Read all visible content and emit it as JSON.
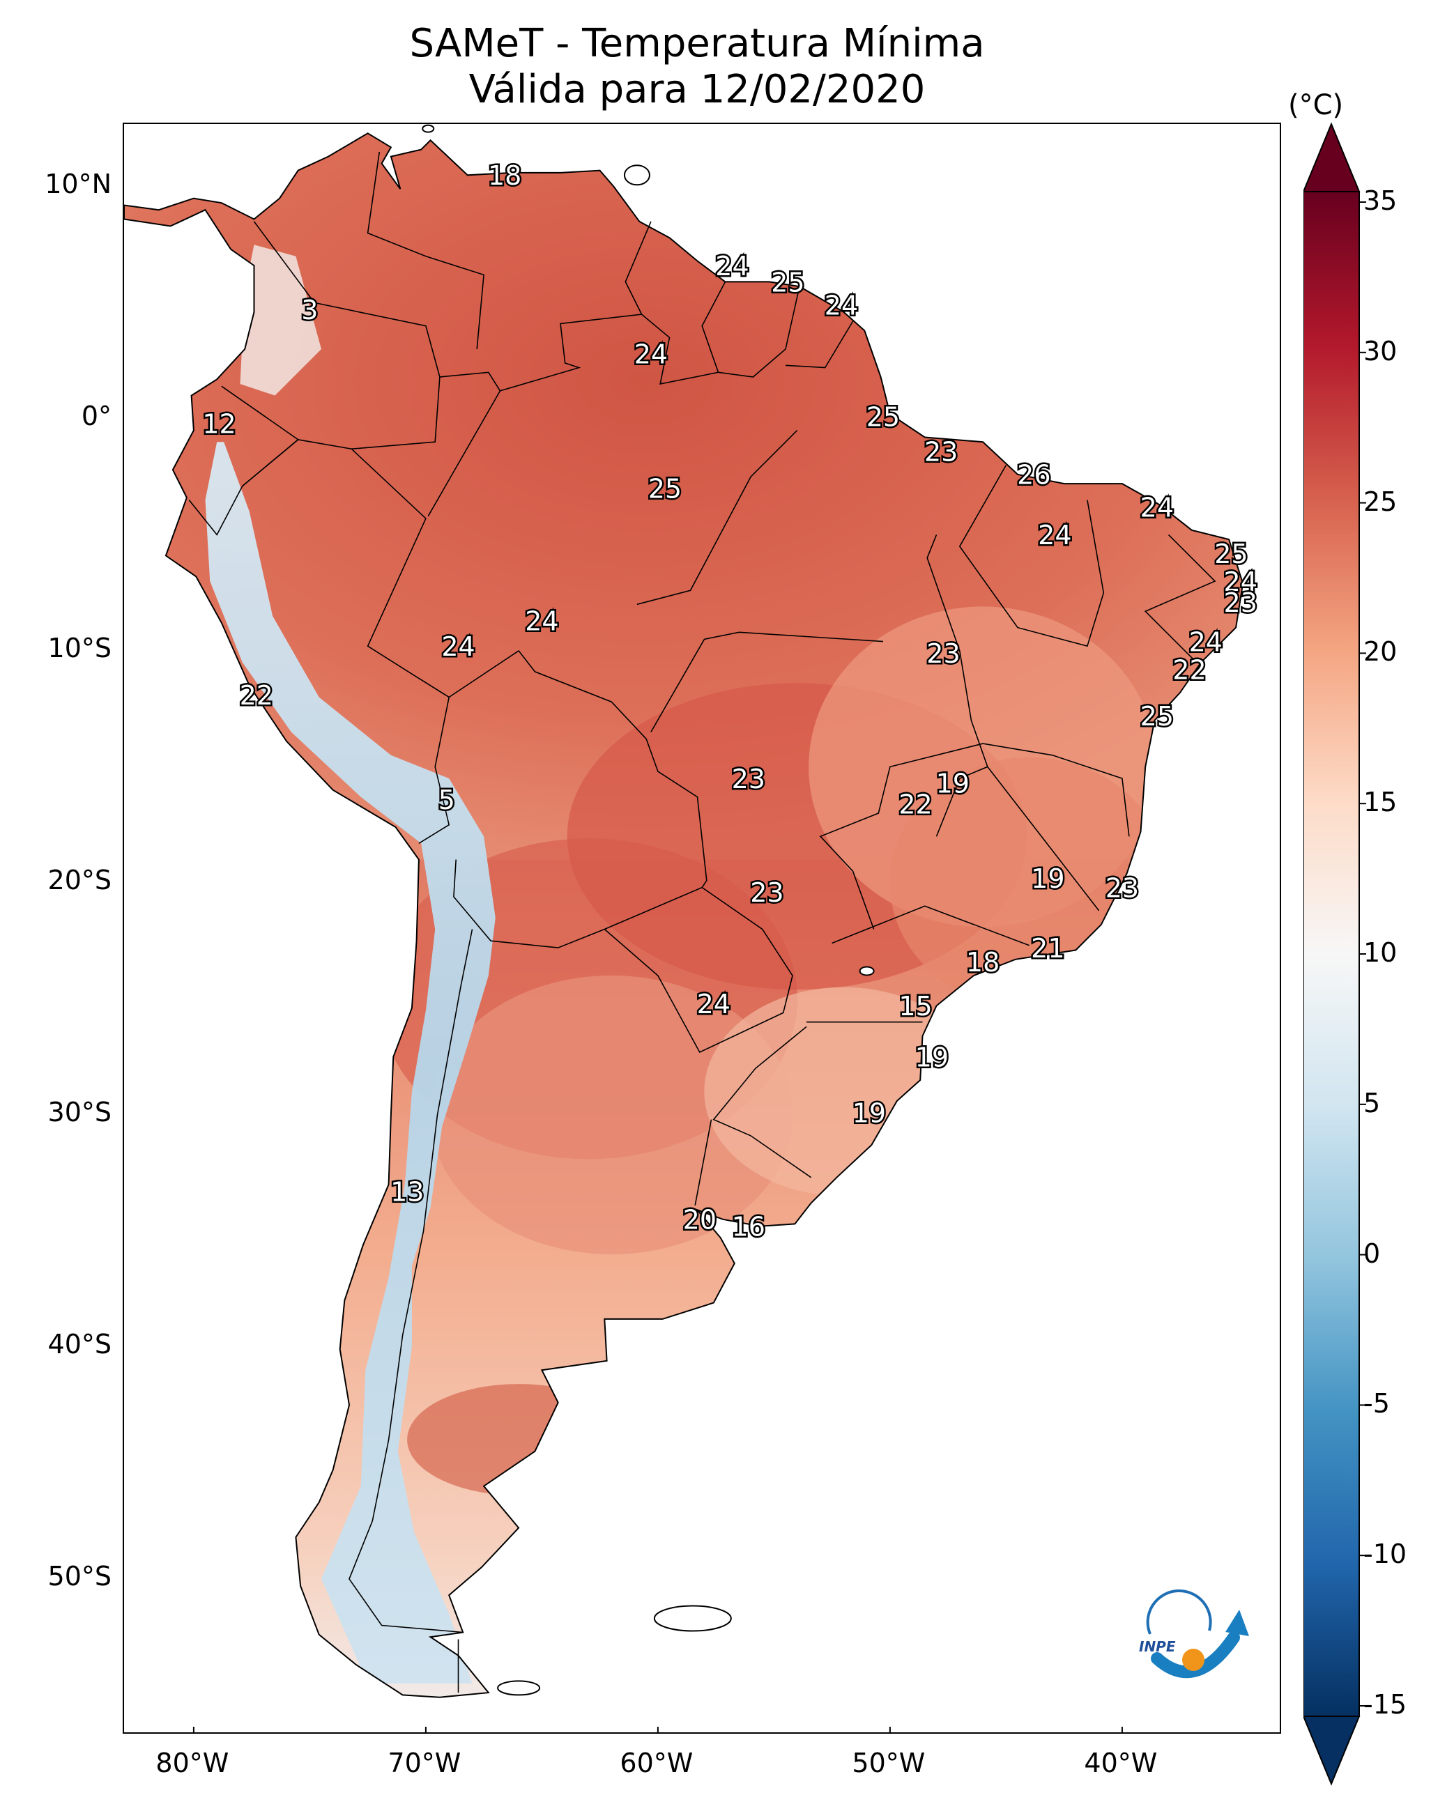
{
  "title": {
    "line1": "SAMeT - Temperatura Mínima",
    "line2": "Válida para 12/02/2020"
  },
  "colorbar": {
    "unit": "(°C)",
    "ticks": [
      "35",
      "30",
      "25",
      "20",
      "15",
      "10",
      "5",
      "0",
      "-5",
      "-10",
      "-15"
    ],
    "min": -15,
    "max": 35,
    "colors_top_to_bottom": [
      "#67001f",
      "#b2182b",
      "#d6604d",
      "#f4a582",
      "#fddbc7",
      "#f7f7f7",
      "#d1e5f0",
      "#92c5de",
      "#4393c3",
      "#2166ac",
      "#053061"
    ]
  },
  "axes": {
    "lat_labels": [
      "10°N",
      "0°",
      "10°S",
      "20°S",
      "30°S",
      "40°S",
      "50°S"
    ],
    "lon_labels": [
      "80°W",
      "70°W",
      "60°W",
      "50°W",
      "40°W"
    ]
  },
  "values": [
    {
      "v": "18",
      "lon": -66.6,
      "lat": 10.4
    },
    {
      "v": "3",
      "lon": -75.0,
      "lat": 4.6
    },
    {
      "v": "24",
      "lon": -56.8,
      "lat": 6.5
    },
    {
      "v": "25",
      "lon": -54.4,
      "lat": 5.8
    },
    {
      "v": "24",
      "lon": -52.1,
      "lat": 4.8
    },
    {
      "v": "24",
      "lon": -60.3,
      "lat": 2.7
    },
    {
      "v": "12",
      "lon": -78.9,
      "lat": -0.3
    },
    {
      "v": "25",
      "lon": -50.3,
      "lat": 0.0
    },
    {
      "v": "23",
      "lon": -47.8,
      "lat": -1.5
    },
    {
      "v": "26",
      "lon": -43.8,
      "lat": -2.5
    },
    {
      "v": "25",
      "lon": -59.7,
      "lat": -3.1
    },
    {
      "v": "24",
      "lon": -38.5,
      "lat": -3.9
    },
    {
      "v": "24",
      "lon": -42.9,
      "lat": -5.1
    },
    {
      "v": "25",
      "lon": -35.3,
      "lat": -5.9
    },
    {
      "v": "24",
      "lon": -34.9,
      "lat": -7.1
    },
    {
      "v": "23",
      "lon": -34.9,
      "lat": -8.0
    },
    {
      "v": "24",
      "lon": -65.0,
      "lat": -8.8
    },
    {
      "v": "24",
      "lon": -68.6,
      "lat": -9.9
    },
    {
      "v": "23",
      "lon": -47.7,
      "lat": -10.2
    },
    {
      "v": "24",
      "lon": -36.4,
      "lat": -9.7
    },
    {
      "v": "22",
      "lon": -37.1,
      "lat": -10.9
    },
    {
      "v": "22",
      "lon": -77.3,
      "lat": -12.0
    },
    {
      "v": "25",
      "lon": -38.5,
      "lat": -12.9
    },
    {
      "v": "5",
      "lon": -69.1,
      "lat": -16.5
    },
    {
      "v": "19",
      "lon": -47.3,
      "lat": -15.8
    },
    {
      "v": "23",
      "lon": -56.1,
      "lat": -15.6
    },
    {
      "v": "22",
      "lon": -48.9,
      "lat": -16.7
    },
    {
      "v": "19",
      "lon": -43.2,
      "lat": -19.9
    },
    {
      "v": "23",
      "lon": -40.0,
      "lat": -20.3
    },
    {
      "v": "23",
      "lon": -55.3,
      "lat": -20.5
    },
    {
      "v": "21",
      "lon": -43.2,
      "lat": -22.9
    },
    {
      "v": "18",
      "lon": -46.0,
      "lat": -23.5
    },
    {
      "v": "24",
      "lon": -57.6,
      "lat": -25.3
    },
    {
      "v": "15",
      "lon": -48.9,
      "lat": -25.4
    },
    {
      "v": "19",
      "lon": -48.2,
      "lat": -27.6
    },
    {
      "v": "19",
      "lon": -50.9,
      "lat": -30.0
    },
    {
      "v": "13",
      "lon": -70.8,
      "lat": -33.4
    },
    {
      "v": "20",
      "lon": -58.2,
      "lat": -34.6
    },
    {
      "v": "16",
      "lon": -56.1,
      "lat": -34.9
    }
  ],
  "logo": {
    "text": "INPE"
  }
}
